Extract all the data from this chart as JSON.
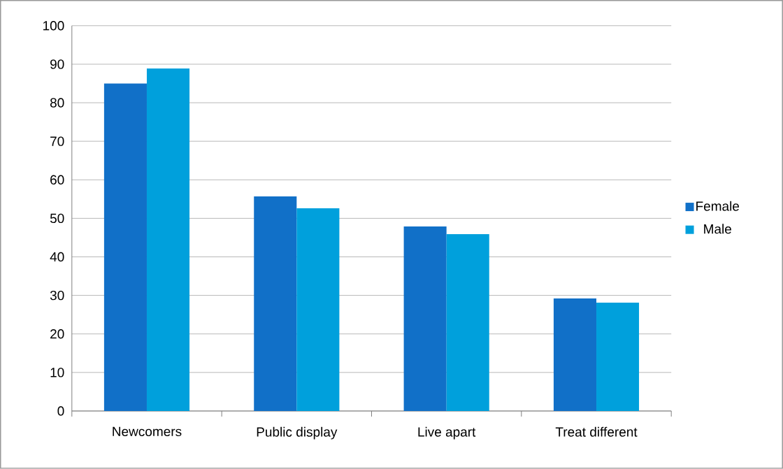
{
  "chart_data": {
    "type": "bar",
    "categories": [
      "Newcomers",
      "Public display",
      "Live apart",
      "Treat different"
    ],
    "series": [
      {
        "name": "Female",
        "color": "#1170c8",
        "values": [
          85,
          55.7,
          47.9,
          29.2
        ]
      },
      {
        "name": "Male",
        "color": "#00a0dc",
        "values": [
          88.9,
          52.6,
          45.9,
          28.1
        ]
      }
    ],
    "ylim": [
      0,
      100
    ],
    "yticks": [
      0,
      10,
      20,
      30,
      40,
      50,
      60,
      70,
      80,
      90,
      100
    ],
    "grid": "y",
    "legend": "right"
  }
}
